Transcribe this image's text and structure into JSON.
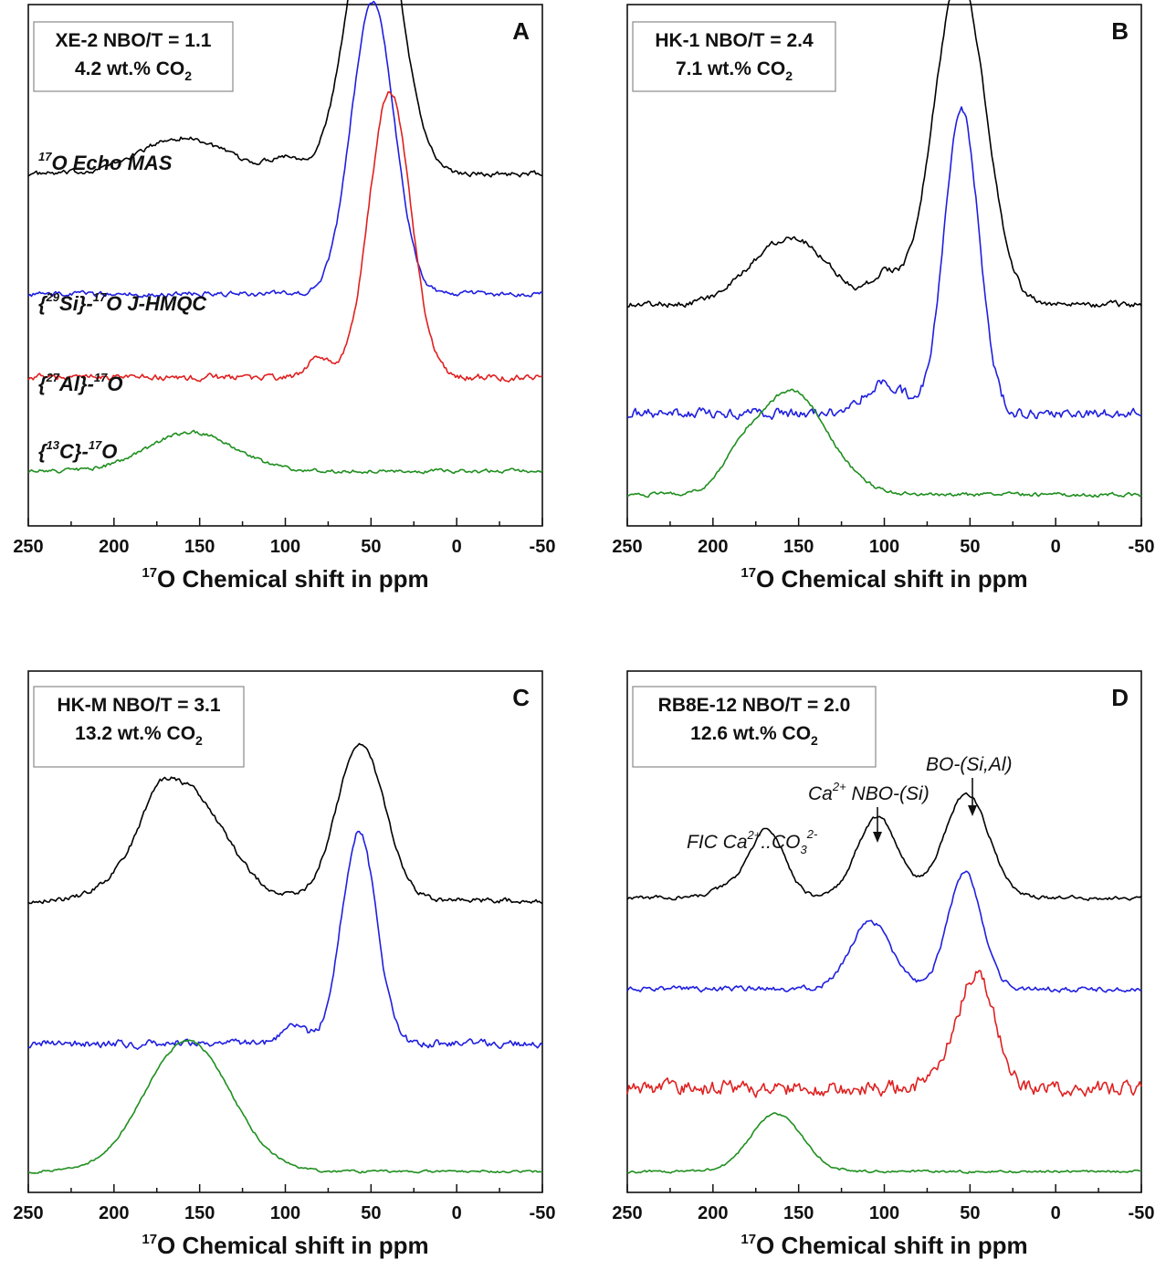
{
  "chart_data": [
    {
      "type": "line",
      "panel_letter": "A",
      "info_line1": "XE-2 NBO/T = 1.1",
      "info_line2_prefix": "4.2 wt.% CO",
      "info_line2_sub": "2",
      "xlabel_sup": "17",
      "xlabel": "O Chemical shift in ppm",
      "xlim": [
        250,
        -50
      ],
      "xticks": [
        "250",
        "200",
        "150",
        "100",
        "50",
        "0",
        "-50"
      ],
      "trace_labels": [
        {
          "series": "black",
          "parts": [
            [
              "",
              "{"
            ],
            [
              "sup",
              "29"
            ],
            [
              "",
              "Si}-"
            ],
            [
              "sup",
              "17"
            ],
            [
              "",
              "O J-HMQC"
            ]
          ],
          "for": "blue"
        },
        {
          "series": "black",
          "parts": [
            [
              "sup",
              "17"
            ],
            [
              "",
              "O Echo MAS"
            ]
          ],
          "for": "black"
        },
        {
          "series": "red",
          "parts": [
            [
              "",
              "{"
            ],
            [
              "sup",
              "27"
            ],
            [
              "",
              "Al}-"
            ],
            [
              "sup",
              "17"
            ],
            [
              "",
              "O"
            ]
          ],
          "for": "red"
        },
        {
          "series": "green",
          "parts": [
            [
              "",
              "{"
            ],
            [
              "sup",
              "13"
            ],
            [
              "",
              "C}-"
            ],
            [
              "sup",
              "17"
            ],
            [
              "",
              "O"
            ]
          ],
          "for": "green"
        }
      ],
      "series": [
        {
          "color": "#000000",
          "baseline": 0.675,
          "noise": 0.004,
          "peaks": [
            [
              48,
              0.57,
              15
            ],
            [
              160,
              0.07,
              25
            ],
            [
              100,
              0.03,
              10
            ]
          ]
        },
        {
          "color": "#1f1fe0",
          "baseline": 0.445,
          "noise": 0.004,
          "peaks": [
            [
              49,
              0.56,
              12.5
            ]
          ]
        },
        {
          "color": "#e02020",
          "baseline": 0.285,
          "noise": 0.005,
          "peaks": [
            [
              39,
              0.55,
              12
            ],
            [
              80,
              0.04,
              6
            ]
          ]
        },
        {
          "color": "#1f8f1f",
          "baseline": 0.105,
          "noise": 0.003,
          "peaks": [
            [
              155,
              0.075,
              25
            ]
          ]
        }
      ]
    },
    {
      "type": "line",
      "panel_letter": "B",
      "info_line1": "HK-1 NBO/T = 2.4",
      "info_line2_prefix": "7.1 wt.% CO",
      "info_line2_sub": "2",
      "xlabel_sup": "17",
      "xlabel": "O Chemical shift in ppm",
      "xlim": [
        250,
        -50
      ],
      "xticks": [
        "250",
        "200",
        "150",
        "100",
        "50",
        "0",
        "-50"
      ],
      "trace_labels": [],
      "series": [
        {
          "color": "#000000",
          "baseline": 0.425,
          "noise": 0.005,
          "peaks": [
            [
              56,
              0.63,
              15
            ],
            [
              155,
              0.13,
              22
            ],
            [
              100,
              0.05,
              8
            ]
          ]
        },
        {
          "color": "#1f1fe0",
          "baseline": 0.215,
          "noise": 0.008,
          "peaks": [
            [
              55,
              0.59,
              10
            ],
            [
              100,
              0.06,
              12
            ]
          ]
        },
        {
          "color": "#1f8f1f",
          "baseline": 0.06,
          "noise": 0.003,
          "peaks": [
            [
              155,
              0.2,
              22
            ],
            [
              185,
              0.03,
              8
            ]
          ]
        }
      ]
    },
    {
      "type": "line",
      "panel_letter": "C",
      "info_line1": "HK-M NBO/T = 3.1",
      "info_line2_prefix": "13.2 wt.% CO",
      "info_line2_sub": "2",
      "xlabel_sup": "17",
      "xlabel": "O Chemical shift in ppm",
      "xlim": [
        250,
        -50
      ],
      "xticks": [
        "250",
        "200",
        "150",
        "100",
        "50",
        "0",
        "-50"
      ],
      "trace_labels": [],
      "series": [
        {
          "color": "#000000",
          "baseline": 0.56,
          "noise": 0.004,
          "peaks": [
            [
              56,
              0.3,
              14
            ],
            [
              160,
              0.22,
              24
            ],
            [
              175,
              0.04,
              8
            ]
          ]
        },
        {
          "color": "#1f1fe0",
          "baseline": 0.285,
          "noise": 0.006,
          "peaks": [
            [
              57,
              0.41,
              10
            ],
            [
              95,
              0.03,
              8
            ]
          ]
        },
        {
          "color": "#1f8f1f",
          "baseline": 0.04,
          "noise": 0.002,
          "peaks": [
            [
              157,
              0.25,
              25
            ]
          ]
        }
      ]
    },
    {
      "type": "line",
      "panel_letter": "D",
      "info_line1": "RB8E-12 NBO/T = 2.0",
      "info_line2_prefix": "12.6 wt.% CO",
      "info_line2_sub": "2",
      "xlabel_sup": "17",
      "xlabel": "O Chemical shift in ppm",
      "xlim": [
        250,
        -50
      ],
      "xticks": [
        "250",
        "200",
        "150",
        "100",
        "50",
        "0",
        "-50"
      ],
      "annotations": {
        "fic_prefix": "FIC Ca",
        "fic_sup1": "2+",
        "fic_mid": "..CO",
        "fic_sub": "3",
        "fic_sup2": "2-",
        "nbo_prefix": "Ca",
        "nbo_sup": "2+",
        "nbo_text": " NBO-(Si)",
        "bo_text": "BO-(Si,Al)"
      },
      "trace_labels": [],
      "series": [
        {
          "color": "#000000",
          "baseline": 0.565,
          "noise": 0.003,
          "peaks": [
            [
              52,
              0.2,
              13
            ],
            [
              104,
              0.155,
              12
            ],
            [
              168,
              0.13,
              10
            ],
            [
              190,
              0.02,
              10
            ]
          ]
        },
        {
          "color": "#1f1fe0",
          "baseline": 0.39,
          "noise": 0.004,
          "peaks": [
            [
              53,
              0.225,
              10
            ],
            [
              108,
              0.13,
              12
            ]
          ]
        },
        {
          "color": "#e02020",
          "baseline": 0.2,
          "noise": 0.012,
          "peaks": [
            [
              45,
              0.2,
              10
            ],
            [
              60,
              0.05,
              10
            ]
          ]
        },
        {
          "color": "#1f8f1f",
          "baseline": 0.04,
          "noise": 0.002,
          "peaks": [
            [
              163,
              0.11,
              15
            ]
          ]
        }
      ]
    }
  ]
}
